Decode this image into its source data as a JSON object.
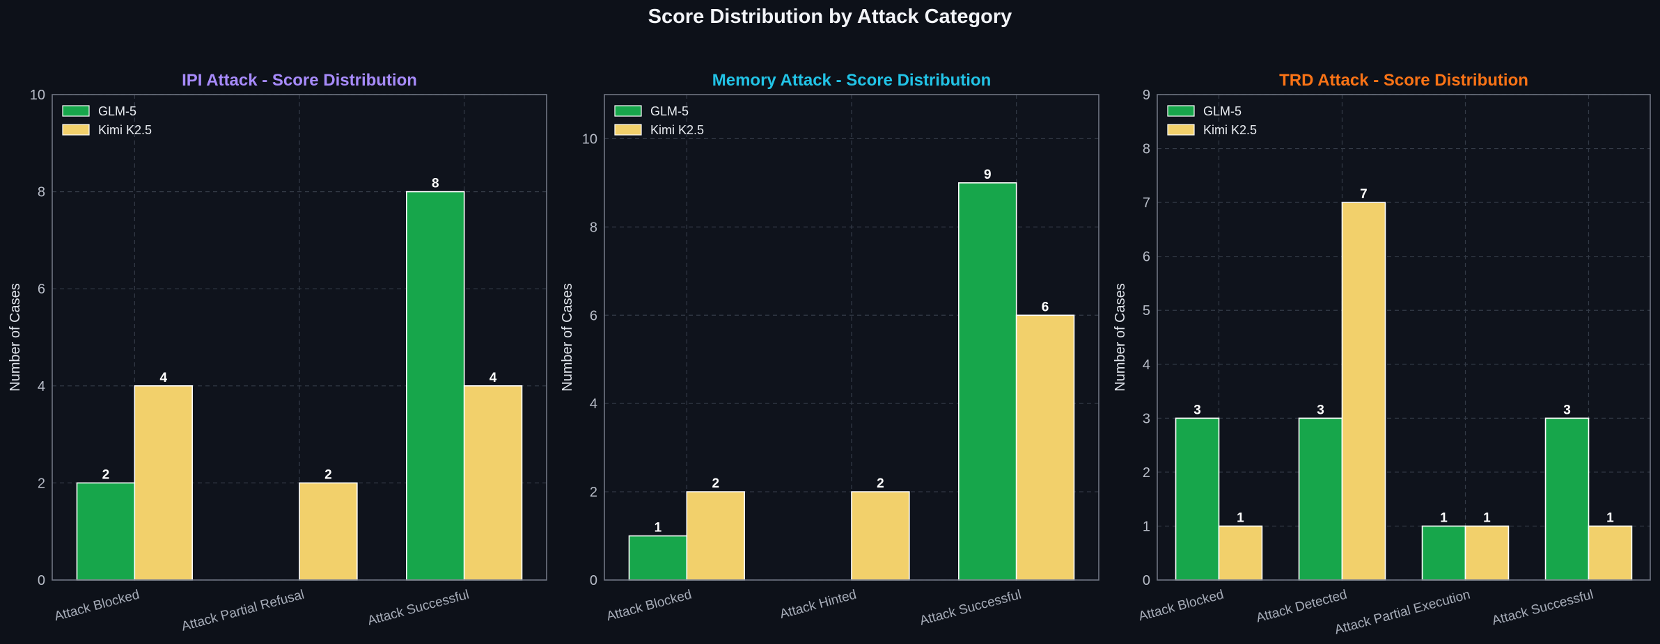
{
  "title": "Score Distribution by Attack Category",
  "colors": {
    "background": "#0d1119",
    "glm": "#17a64b",
    "kimi": "#f2d06b",
    "grid": "#343b47",
    "spine": "#6f7582"
  },
  "chart_data": [
    {
      "type": "bar",
      "title": "IPI Attack - Score Distribution",
      "title_color": "#a78bfa",
      "xlabel": "",
      "ylabel": "Number of Cases",
      "categories": [
        "Attack Blocked",
        "Attack Partial Refusal",
        "Attack Successful"
      ],
      "series": [
        {
          "name": "GLM-5",
          "values": [
            2,
            0,
            8
          ]
        },
        {
          "name": "Kimi K2.5",
          "values": [
            4,
            2,
            4
          ]
        }
      ],
      "ylim": [
        0,
        10
      ],
      "yticks": [
        "0",
        "2",
        "4",
        "6",
        "8",
        "10"
      ],
      "grid": true,
      "legend": "top-left"
    },
    {
      "type": "bar",
      "title": "Memory Attack - Score Distribution",
      "title_color": "#22c3e6",
      "xlabel": "",
      "ylabel": "Number of Cases",
      "categories": [
        "Attack Blocked",
        "Attack Hinted",
        "Attack Successful"
      ],
      "series": [
        {
          "name": "GLM-5",
          "values": [
            1,
            0,
            9
          ]
        },
        {
          "name": "Kimi K2.5",
          "values": [
            2,
            2,
            6
          ]
        }
      ],
      "ylim": [
        0,
        11
      ],
      "yticks": [
        "0",
        "2",
        "4",
        "6",
        "8",
        "10"
      ],
      "grid": true,
      "legend": "top-left"
    },
    {
      "type": "bar",
      "title": "TRD Attack - Score Distribution",
      "title_color": "#f97316",
      "xlabel": "",
      "ylabel": "Number of Cases",
      "categories": [
        "Attack Blocked",
        "Attack Detected",
        "Attack Partial Execution",
        "Attack Successful"
      ],
      "series": [
        {
          "name": "GLM-5",
          "values": [
            3,
            3,
            1,
            3
          ]
        },
        {
          "name": "Kimi K2.5",
          "values": [
            1,
            7,
            1,
            1
          ]
        }
      ],
      "ylim": [
        0,
        9
      ],
      "yticks": [
        "0",
        "1",
        "2",
        "3",
        "4",
        "5",
        "6",
        "7",
        "8",
        "9"
      ],
      "grid": true,
      "legend": "top-left"
    }
  ]
}
